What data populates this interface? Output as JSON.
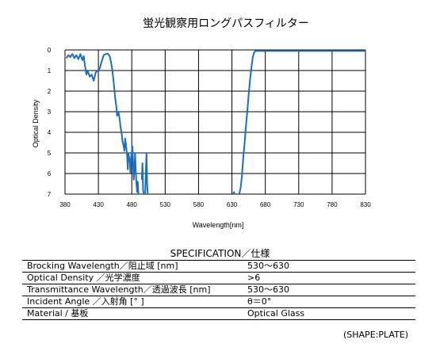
{
  "chart_data": {
    "type": "line",
    "title": "蛍光観察用ロングパスフィルター",
    "xlabel": "Wavelength[nm]",
    "ylabel": "Optical Density",
    "xlim": [
      380,
      830
    ],
    "ylim": [
      0,
      7
    ],
    "y_inverted": true,
    "grid": true,
    "x_ticks": [
      "380",
      "430",
      "480",
      "530",
      "580",
      "630",
      "680",
      "730",
      "780",
      "830"
    ],
    "y_ticks": [
      "0",
      "1",
      "2",
      "3",
      "4",
      "5",
      "6",
      "7"
    ],
    "series": [
      {
        "color": "#1a6fbf",
        "segments": [
          [
            [
              382,
              0.4
            ],
            [
              385,
              0.25
            ],
            [
              388,
              0.35
            ],
            [
              391,
              0.2
            ],
            [
              394,
              0.4
            ],
            [
              397,
              0.25
            ],
            [
              400,
              0.45
            ],
            [
              403,
              0.2
            ],
            [
              406,
              0.5
            ],
            [
              408,
              0.3
            ],
            [
              410,
              0.8
            ],
            [
              412,
              1.2
            ],
            [
              414,
              1.0
            ],
            [
              417,
              1.3
            ],
            [
              420,
              1.2
            ],
            [
              423,
              1.5
            ],
            [
              426,
              1.1
            ],
            [
              429,
              1.0
            ],
            [
              432,
              0.9
            ],
            [
              435,
              0.55
            ],
            [
              438,
              0.25
            ],
            [
              441,
              0.2
            ],
            [
              444,
              0.18
            ],
            [
              447,
              0.3
            ],
            [
              449,
              0.6
            ],
            [
              451,
              1.0
            ],
            [
              453,
              1.6
            ],
            [
              455,
              2.3
            ],
            [
              457,
              2.8
            ],
            [
              458,
              3.2
            ],
            [
              460,
              3.0
            ],
            [
              462,
              3.4
            ],
            [
              463,
              3.7
            ],
            [
              465,
              4.1
            ],
            [
              466,
              4.4
            ],
            [
              468,
              4.7
            ],
            [
              469,
              4.9
            ],
            [
              470,
              4.3
            ],
            [
              471,
              4.5
            ],
            [
              473,
              5.1
            ],
            [
              474,
              5.8
            ],
            [
              475,
              5.0
            ],
            [
              477,
              5.4
            ],
            [
              478,
              6.0
            ],
            [
              479,
              5.2
            ],
            [
              481,
              4.7
            ],
            [
              482,
              5.5
            ],
            [
              483,
              6.3
            ],
            [
              484,
              5.8
            ],
            [
              485,
              5.0
            ],
            [
              486,
              5.9
            ],
            [
              487,
              6.5
            ],
            [
              488,
              6.9
            ],
            [
              489,
              6.4
            ],
            [
              490,
              7.0
            ]
          ],
          [
            [
              495,
              6.3
            ],
            [
              496,
              5.5
            ],
            [
              497,
              6.8
            ],
            [
              498,
              7.0
            ]
          ],
          [
            [
              500,
              7.0
            ],
            [
              501,
              6.0
            ],
            [
              502,
              5.0
            ],
            [
              503,
              6.5
            ],
            [
              504,
              7.0
            ]
          ],
          [
            [
              632,
              7.0
            ],
            [
              633,
              6.9
            ],
            [
              634,
              7.0
            ]
          ],
          [
            [
              641,
              7.0
            ],
            [
              643,
              6.7
            ],
            [
              645,
              6.1
            ],
            [
              647,
              5.2
            ],
            [
              649,
              4.5
            ],
            [
              651,
              3.7
            ],
            [
              653,
              3.0
            ],
            [
              655,
              2.2
            ],
            [
              657,
              1.5
            ],
            [
              659,
              0.9
            ],
            [
              661,
              0.4
            ],
            [
              663,
              0.15
            ],
            [
              665,
              0.05
            ],
            [
              830,
              0.05
            ]
          ]
        ]
      }
    ]
  },
  "spec": {
    "title": "SPECIFICATION／仕様",
    "rows": [
      {
        "param": "Brocking  Wavelength／阻止域  [nm]",
        "value": "530～630"
      },
      {
        "param": "Optical Density  ／光学濃度",
        "value": ">6"
      },
      {
        "param": "Transmittance  Wavelength／透過波長  [nm]",
        "value": "530～630"
      },
      {
        "param": "Incident Angle  ／入射角 [°  ]",
        "value": "θ＝0°"
      },
      {
        "param": "Material  /  基板",
        "value": "Optical Glass"
      }
    ],
    "note": "(SHAPE:PLATE)"
  }
}
